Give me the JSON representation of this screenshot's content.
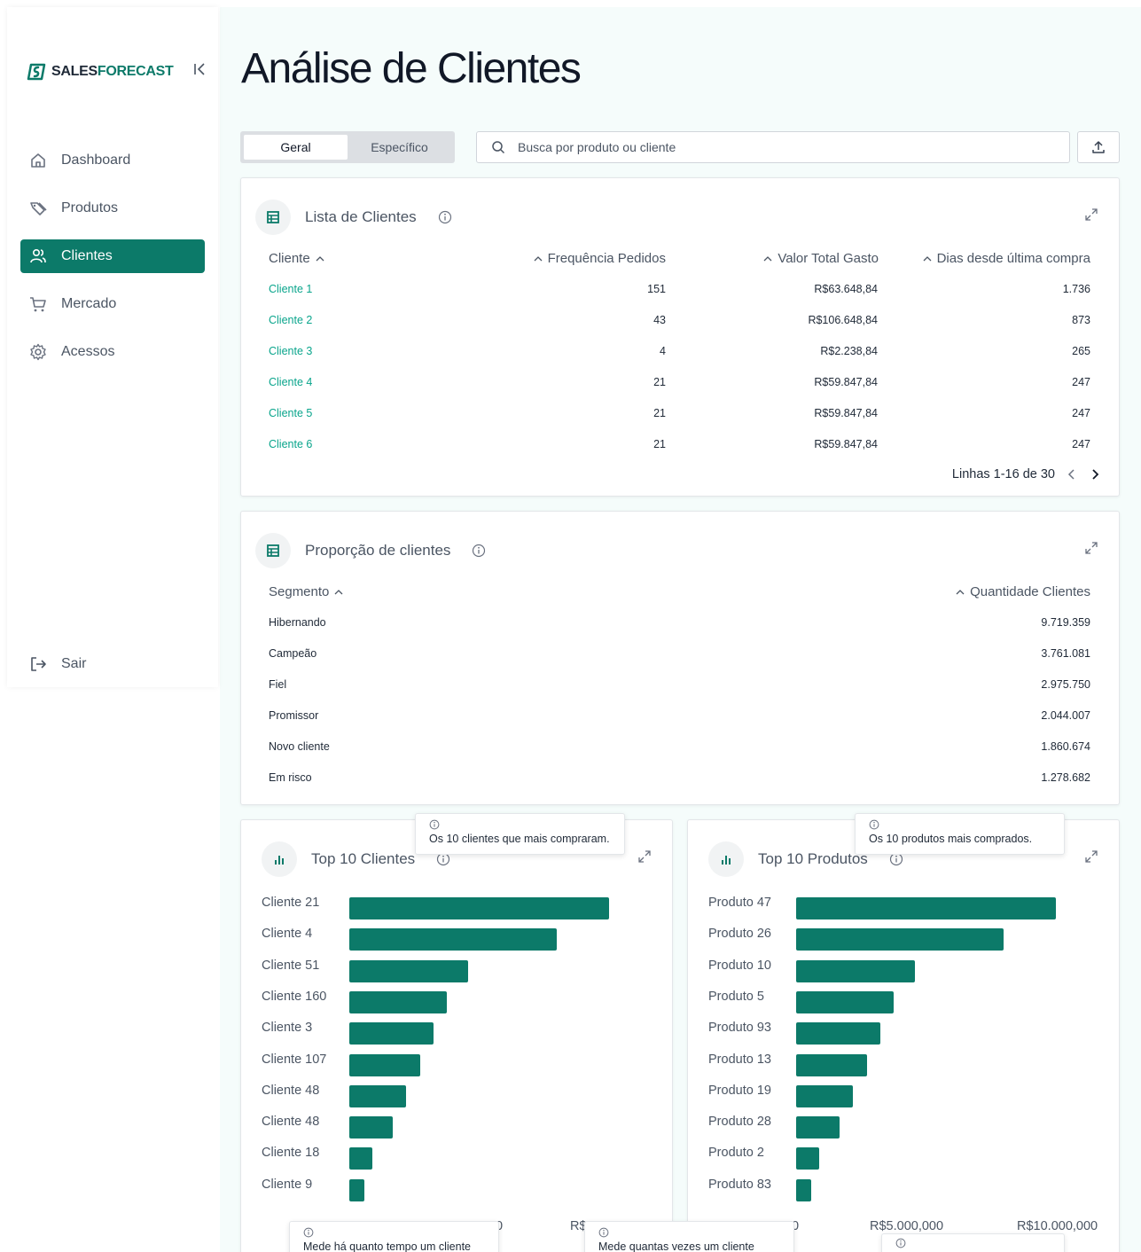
{
  "brand": {
    "part1": "SALES",
    "part2": "FORECAST"
  },
  "sidebar": {
    "items": [
      {
        "label": "Dashboard",
        "icon": "home-icon"
      },
      {
        "label": "Produtos",
        "icon": "tag-icon"
      },
      {
        "label": "Clientes",
        "icon": "users-icon",
        "active": true
      },
      {
        "label": "Mercado",
        "icon": "cart-icon"
      },
      {
        "label": "Acessos",
        "icon": "gear-icon"
      }
    ],
    "logout": "Sair"
  },
  "page": {
    "title": "Análise de Clientes"
  },
  "tabs": [
    {
      "label": "Geral",
      "active": true
    },
    {
      "label": "Específico"
    }
  ],
  "search": {
    "placeholder": "Busca por produto ou cliente"
  },
  "clients_table": {
    "title": "Lista de Clientes",
    "columns": [
      "Cliente",
      "Frequência Pedidos",
      "Valor Total Gasto",
      "Dias desde última compra"
    ],
    "rows": [
      [
        "Cliente 1",
        "151",
        "R$63.648,84",
        "1.736"
      ],
      [
        "Cliente 2",
        "43",
        "R$106.648,84",
        "873"
      ],
      [
        "Cliente 3",
        "4",
        "R$2.238,84",
        "265"
      ],
      [
        "Cliente 4",
        "21",
        "R$59.847,84",
        "247"
      ],
      [
        "Cliente 5",
        "21",
        "R$59.847,84",
        "247"
      ],
      [
        "Cliente 6",
        "21",
        "R$59.847,84",
        "247"
      ]
    ],
    "pagination": "Linhas 1-16 de 30"
  },
  "segments_table": {
    "title": "Proporção de clientes",
    "columns": [
      "Segmento",
      "Quantidade Clientes"
    ],
    "rows": [
      [
        "Hibernando",
        "9.719.359"
      ],
      [
        "Campeão",
        "3.761.081"
      ],
      [
        "Fiel",
        "2.975.750"
      ],
      [
        "Promissor",
        "2.044.007"
      ],
      [
        "Novo cliente",
        "1.860.674"
      ],
      [
        "Em risco",
        "1.278.682"
      ]
    ]
  },
  "top_clients": {
    "title": "Top 10 Clientes",
    "tooltip": "Os 10 clientes que mais compraram.",
    "axis_fragments": [
      "0",
      "R$"
    ],
    "bottom_tooltip": "Mede há quanto tempo um cliente"
  },
  "top_products": {
    "title": "Top 10 Produtos",
    "tooltip": "Os 10 produtos mais comprados.",
    "axis_fragments": [
      "0",
      "R$5.000,000",
      "R$10.000,000"
    ],
    "bottom_tooltip": "Mede quantas vezes um cliente"
  },
  "chart_data": [
    {
      "type": "bar",
      "orientation": "horizontal",
      "title": "Top 10 Clientes",
      "categories": [
        "Cliente 21",
        "Cliente 4",
        "Cliente 51",
        "Cliente 160",
        "Cliente 3",
        "Cliente 107",
        "Cliente 48",
        "Cliente 48",
        "Cliente 18",
        "Cliente 9"
      ],
      "values": [
        10000000,
        8000000,
        4560000,
        3750000,
        3230000,
        2730000,
        2200000,
        1670000,
        880000,
        590000
      ],
      "xlim": [
        0,
        10000000
      ]
    },
    {
      "type": "bar",
      "orientation": "horizontal",
      "title": "Top 10 Produtos",
      "categories": [
        "Produto 47",
        "Produto 26",
        "Produto 10",
        "Produto 5",
        "Produto 93",
        "Produto 13",
        "Produto 19",
        "Produto 28",
        "Produto 2",
        "Produto 83"
      ],
      "values": [
        10000000,
        8000000,
        4560000,
        3750000,
        3230000,
        2730000,
        2200000,
        1670000,
        880000,
        590000
      ],
      "xlim": [
        0,
        10000000
      ]
    }
  ],
  "colors": {
    "accent": "#0c7a69",
    "link": "#0aa58c"
  }
}
